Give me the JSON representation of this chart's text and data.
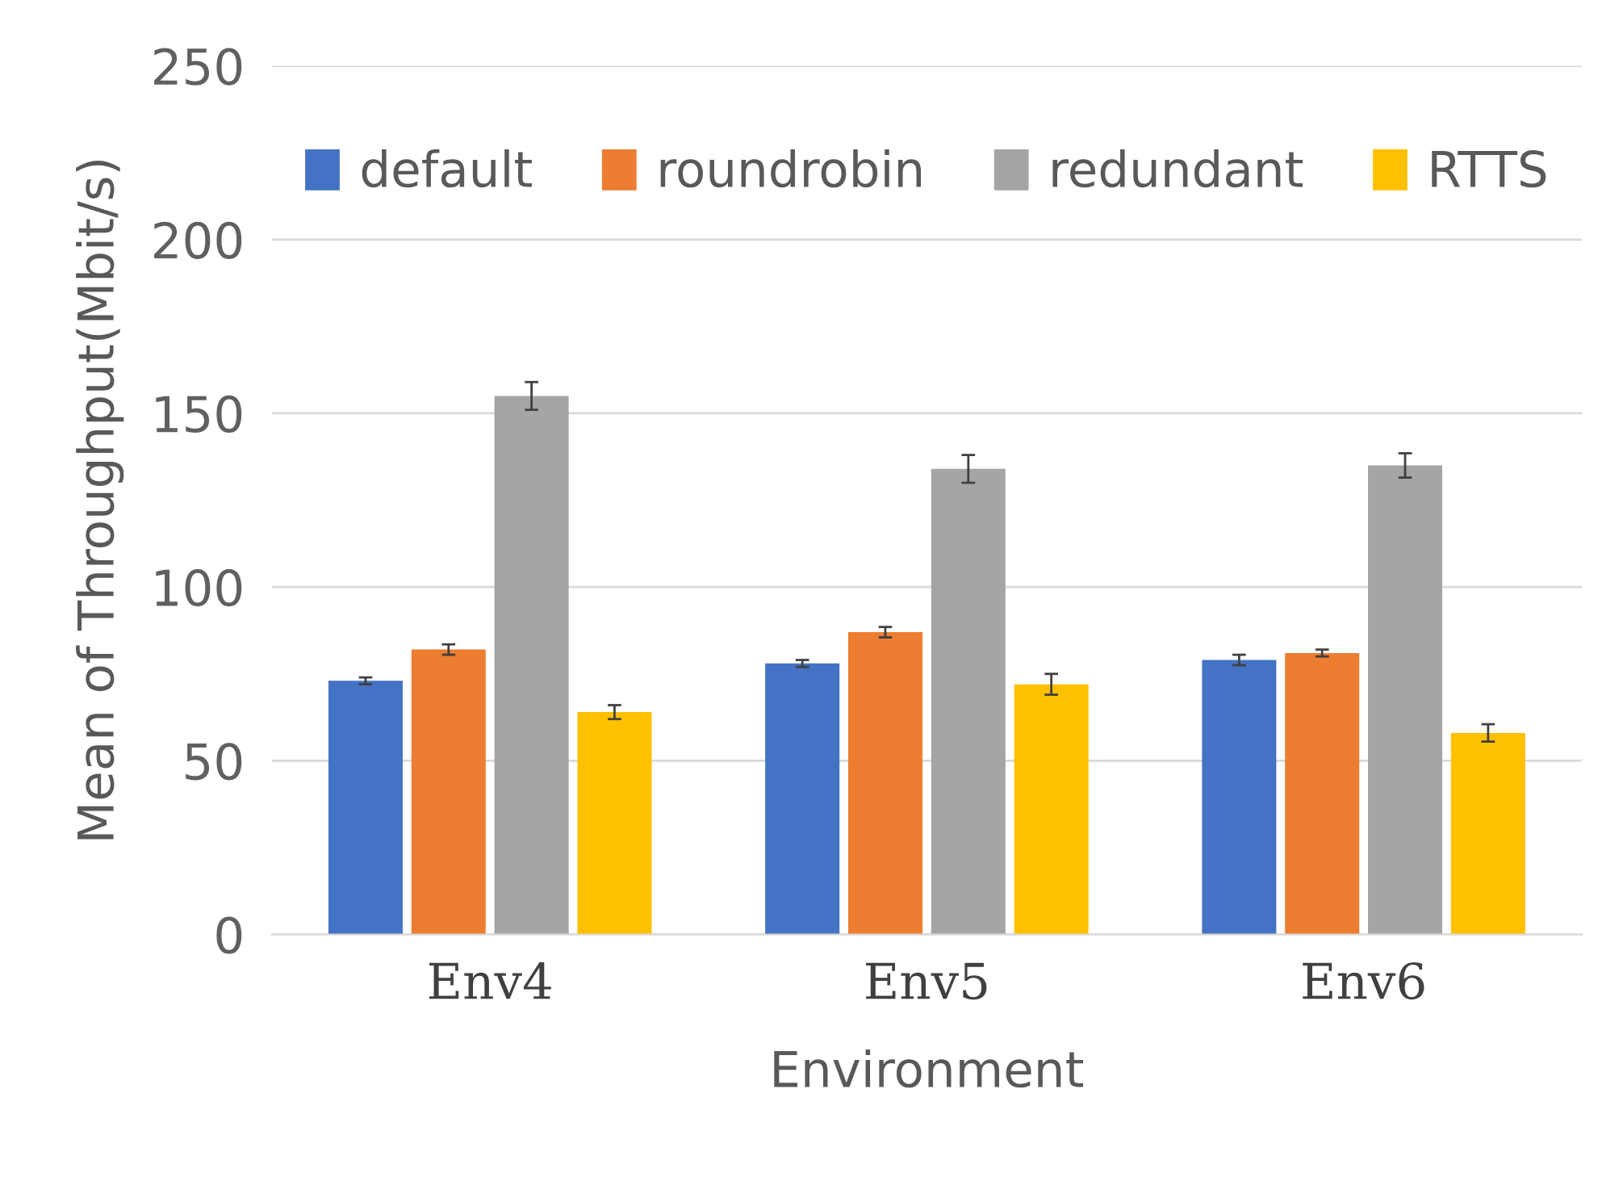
{
  "chart_data": {
    "type": "bar",
    "xlabel": "Environment",
    "ylabel": "Mean of Throughput(Mbit/s)",
    "categories": [
      "Env4",
      "Env5",
      "Env6"
    ],
    "series": [
      {
        "name": "default",
        "color": "#4472c4",
        "values": [
          73,
          78,
          79
        ],
        "errors": [
          1,
          1,
          1.5
        ]
      },
      {
        "name": "roundrobin",
        "color": "#ed7d31",
        "values": [
          82,
          87,
          81
        ],
        "errors": [
          1.5,
          1.5,
          1
        ]
      },
      {
        "name": "redundant",
        "color": "#a5a5a5",
        "values": [
          155,
          134,
          135
        ],
        "errors": [
          4,
          4,
          3.5
        ]
      },
      {
        "name": "RTTS",
        "color": "#ffc000",
        "values": [
          64,
          72,
          58
        ],
        "errors": [
          2,
          3,
          2.5
        ]
      }
    ],
    "ylim": [
      0,
      250
    ],
    "yticks": [
      0,
      50,
      100,
      150,
      200,
      250
    ],
    "grid": "y",
    "legend": "top"
  }
}
